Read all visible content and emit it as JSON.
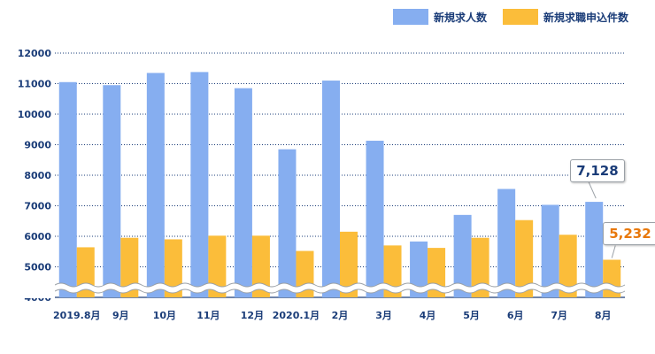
{
  "colors": {
    "series_job_openings": "#86aef0",
    "series_applications": "#fbbd3a",
    "axis_text": "#1a3c78",
    "grid": "#1a3c78",
    "callout_1": "#1a3c78",
    "callout_2": "#e8780a"
  },
  "legend": [
    {
      "name": "新規求人数",
      "color": "#86aef0",
      "text_color": "#1a3c78"
    },
    {
      "name": "新規求職申込件数",
      "color": "#fbbd3a",
      "text_color": "#1a3c78"
    }
  ],
  "callouts": [
    {
      "text": "7,128",
      "series": 0,
      "category_index": 12
    },
    {
      "text": "5,232",
      "series": 1,
      "category_index": 12
    }
  ],
  "chart_data": {
    "type": "bar",
    "categories": [
      "2019.8月",
      "9月",
      "10月",
      "11月",
      "12月",
      "2020.1月",
      "2月",
      "3月",
      "4月",
      "5月",
      "6月",
      "7月",
      "8月"
    ],
    "series": [
      {
        "name": "新規求人数",
        "values": [
          11050,
          10950,
          11350,
          11380,
          10850,
          8850,
          11100,
          9130,
          5830,
          6700,
          7550,
          7030,
          7128
        ]
      },
      {
        "name": "新規求職申込件数",
        "values": [
          5640,
          5950,
          5900,
          6020,
          6020,
          5520,
          6150,
          5700,
          5620,
          5950,
          6530,
          6050,
          5232
        ]
      }
    ],
    "y_ticks": [
      4000,
      5000,
      6000,
      7000,
      8000,
      9000,
      10000,
      11000,
      12000
    ],
    "ylim": [
      4000,
      12000
    ],
    "y_axis_break": true,
    "grid": true,
    "legend_position": "top-right"
  }
}
